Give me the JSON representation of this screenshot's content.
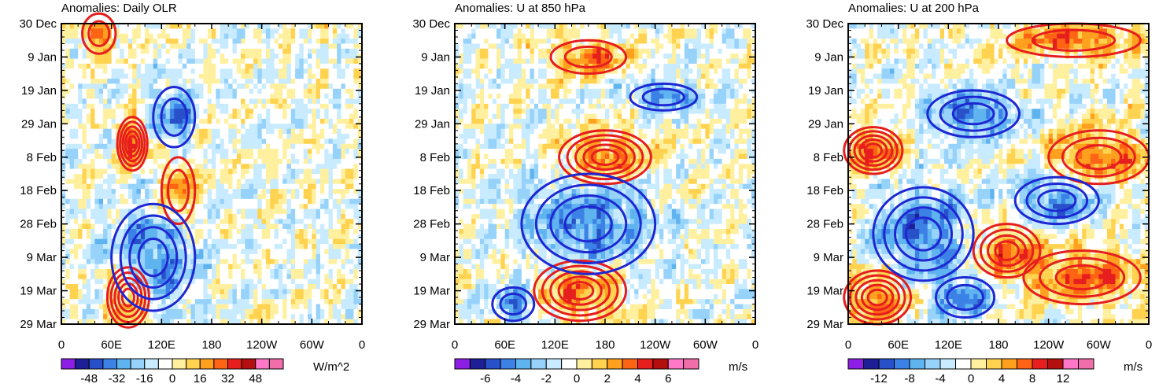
{
  "figure": {
    "panel_count": 3,
    "contour_colors": {
      "positive": "#e61e1e",
      "negative": "#1e28d2"
    }
  },
  "chart_data": [
    {
      "type": "heatmap",
      "title": "Anomalies: Daily OLR",
      "xlabel": "",
      "ylabel": "",
      "x_ticks": [
        "0",
        "60E",
        "120E",
        "180",
        "120W",
        "60W",
        "0"
      ],
      "x_values": [
        0,
        60,
        120,
        180,
        240,
        300,
        360
      ],
      "y_ticks": [
        "30 Dec",
        "9 Jan",
        "19 Jan",
        "29 Jan",
        "8 Feb",
        "18 Feb",
        "28 Feb",
        "9 Mar",
        "19 Mar",
        "29 Mar"
      ],
      "y_values": [
        0,
        10,
        20,
        30,
        40,
        50,
        60,
        70,
        80,
        90
      ],
      "colorbar": {
        "units": "W/m^2",
        "levels": [
          -56,
          -48,
          -40,
          -32,
          -24,
          -16,
          -8,
          0,
          8,
          16,
          24,
          32,
          40,
          48,
          56
        ],
        "tick_labels": [
          "-48",
          "-32",
          "-16",
          "0",
          "16",
          "32",
          "48"
        ],
        "tick_values": [
          -48,
          -32,
          -16,
          0,
          16,
          32,
          48
        ],
        "colors": [
          "#8c1ee6",
          "#1e1e96",
          "#2850c8",
          "#3c82e6",
          "#5fb4f0",
          "#96d2fa",
          "#c8ebff",
          "#ffffff",
          "#fff0a0",
          "#ffd250",
          "#ffa01e",
          "#ff6414",
          "#e61e1e",
          "#b40f0f",
          "#ff78c8",
          "#f06eaa"
        ]
      },
      "contours": {
        "positive": [
          {
            "lon": 85,
            "day": 36,
            "r_lon": 18,
            "r_day": 8,
            "levels": 5
          },
          {
            "lon": 45,
            "day": 3,
            "r_lon": 20,
            "r_day": 6,
            "levels": 2
          },
          {
            "lon": 80,
            "day": 82,
            "r_lon": 25,
            "r_day": 9,
            "levels": 5
          },
          {
            "lon": 140,
            "day": 50,
            "r_lon": 20,
            "r_day": 10,
            "levels": 2
          }
        ],
        "negative": [
          {
            "lon": 110,
            "day": 70,
            "r_lon": 50,
            "r_day": 16,
            "levels": 4
          },
          {
            "lon": 135,
            "day": 28,
            "r_lon": 25,
            "r_day": 9,
            "levels": 2
          }
        ]
      }
    },
    {
      "type": "heatmap",
      "title": "Anomalies: U at 850 hPa",
      "xlabel": "",
      "ylabel": "",
      "x_ticks": [
        "0",
        "60E",
        "120E",
        "180",
        "120W",
        "60W",
        "0"
      ],
      "x_values": [
        0,
        60,
        120,
        180,
        240,
        300,
        360
      ],
      "y_ticks": [
        "30 Dec",
        "9 Jan",
        "19 Jan",
        "29 Jan",
        "8 Feb",
        "18 Feb",
        "28 Feb",
        "9 Mar",
        "19 Mar",
        "29 Mar"
      ],
      "y_values": [
        0,
        10,
        20,
        30,
        40,
        50,
        60,
        70,
        80,
        90
      ],
      "colorbar": {
        "units": "m/s",
        "levels": [
          -7,
          -6,
          -5,
          -4,
          -3,
          -2,
          -1,
          0,
          1,
          2,
          3,
          4,
          5,
          6,
          7
        ],
        "tick_labels": [
          "-6",
          "-4",
          "-2",
          "0",
          "2",
          "4",
          "6"
        ],
        "tick_values": [
          -6,
          -4,
          -2,
          0,
          2,
          4,
          6
        ],
        "colors": [
          "#8c1ee6",
          "#1e1e96",
          "#2850c8",
          "#3c82e6",
          "#5fb4f0",
          "#96d2fa",
          "#c8ebff",
          "#ffffff",
          "#fff0a0",
          "#ffd250",
          "#ffa01e",
          "#ff6414",
          "#e61e1e",
          "#b40f0f",
          "#ff78c8",
          "#f06eaa"
        ]
      },
      "contours": {
        "positive": [
          {
            "lon": 180,
            "day": 40,
            "r_lon": 55,
            "r_day": 8,
            "levels": 5
          },
          {
            "lon": 160,
            "day": 10,
            "r_lon": 45,
            "r_day": 5,
            "levels": 2
          },
          {
            "lon": 150,
            "day": 80,
            "r_lon": 55,
            "r_day": 9,
            "levels": 5
          }
        ],
        "negative": [
          {
            "lon": 160,
            "day": 60,
            "r_lon": 80,
            "r_day": 15,
            "levels": 4
          },
          {
            "lon": 250,
            "day": 22,
            "r_lon": 40,
            "r_day": 4,
            "levels": 2
          },
          {
            "lon": 70,
            "day": 84,
            "r_lon": 25,
            "r_day": 5,
            "levels": 2
          }
        ]
      }
    },
    {
      "type": "heatmap",
      "title": "Anomalies: U at 200 hPa",
      "xlabel": "",
      "ylabel": "",
      "x_ticks": [
        "0",
        "60E",
        "120E",
        "180",
        "120W",
        "60W",
        "0"
      ],
      "x_values": [
        0,
        60,
        120,
        180,
        240,
        300,
        360
      ],
      "y_ticks": [
        "30 Dec",
        "9 Jan",
        "19 Jan",
        "29 Jan",
        "8 Feb",
        "18 Feb",
        "28 Feb",
        "9 Mar",
        "19 Mar",
        "29 Mar"
      ],
      "y_values": [
        0,
        10,
        20,
        30,
        40,
        50,
        60,
        70,
        80,
        90
      ],
      "colorbar": {
        "units": "m/s",
        "levels": [
          -14,
          -12,
          -10,
          -8,
          -6,
          -4,
          -2,
          0,
          2,
          4,
          6,
          8,
          10,
          12,
          14
        ],
        "tick_labels": [
          "-12",
          "-8",
          "-4",
          "0",
          "4",
          "8",
          "12"
        ],
        "tick_values": [
          -12,
          -8,
          -4,
          0,
          4,
          8,
          12
        ],
        "colors": [
          "#8c1ee6",
          "#1e1e96",
          "#2850c8",
          "#3c82e6",
          "#5fb4f0",
          "#96d2fa",
          "#c8ebff",
          "#ffffff",
          "#fff0a0",
          "#ffd250",
          "#ffa01e",
          "#ff6414",
          "#e61e1e",
          "#b40f0f",
          "#ff78c8",
          "#f06eaa"
        ]
      },
      "contours": {
        "positive": [
          {
            "lon": 30,
            "day": 38,
            "r_lon": 35,
            "r_day": 7,
            "levels": 5
          },
          {
            "lon": 35,
            "day": 82,
            "r_lon": 40,
            "r_day": 8,
            "levels": 5
          },
          {
            "lon": 190,
            "day": 68,
            "r_lon": 40,
            "r_day": 8,
            "levels": 4
          },
          {
            "lon": 300,
            "day": 40,
            "r_lon": 60,
            "r_day": 8,
            "levels": 3
          },
          {
            "lon": 280,
            "day": 76,
            "r_lon": 70,
            "r_day": 8,
            "levels": 3
          },
          {
            "lon": 270,
            "day": 5,
            "r_lon": 80,
            "r_day": 5,
            "levels": 2
          }
        ],
        "negative": [
          {
            "lon": 90,
            "day": 63,
            "r_lon": 60,
            "r_day": 14,
            "levels": 4
          },
          {
            "lon": 150,
            "day": 27,
            "r_lon": 55,
            "r_day": 7,
            "levels": 3
          },
          {
            "lon": 250,
            "day": 53,
            "r_lon": 50,
            "r_day": 7,
            "levels": 3
          },
          {
            "lon": 140,
            "day": 82,
            "r_lon": 35,
            "r_day": 6,
            "levels": 2
          }
        ]
      }
    }
  ]
}
